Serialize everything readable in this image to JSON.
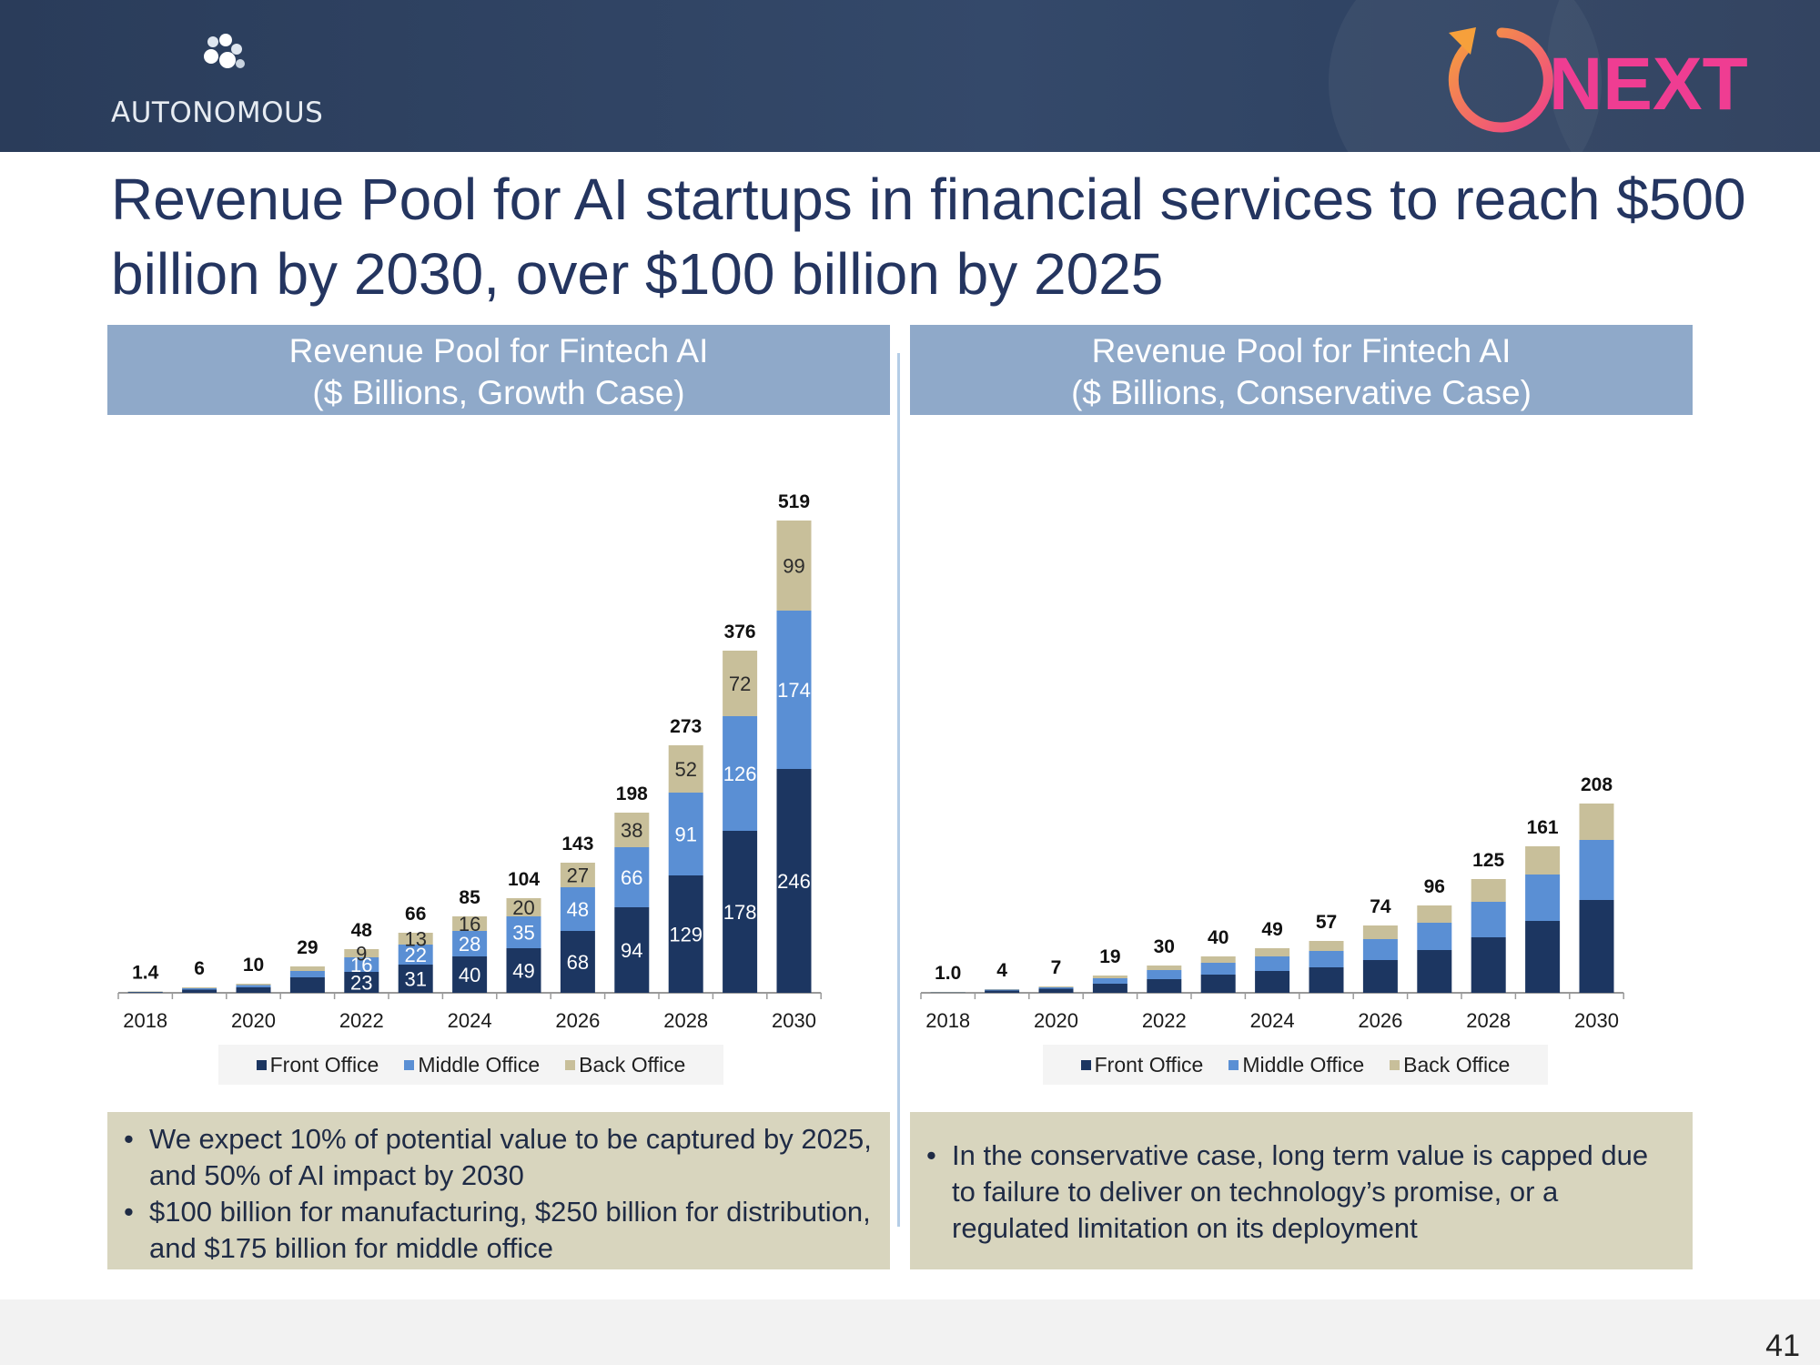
{
  "header": {
    "brand": "AUTONOMOUS",
    "next_logo": "NEXT"
  },
  "title": "Revenue Pool for AI startups in financial services to reach $500 billion by 2030, over $100 billion by 2025",
  "colors": {
    "front_office": "#1c3661",
    "middle_office": "#5a8fd4",
    "back_office": "#c8bf9a",
    "header_band": "#8fa9c9",
    "note_bg": "#d8d5be"
  },
  "legend": {
    "front": "Front Office",
    "middle": "Middle Office",
    "back": "Back Office"
  },
  "chart_data": [
    {
      "type": "bar",
      "stacked": true,
      "title": "Revenue Pool for Fintech AI",
      "subtitle": "($ Billions, Growth Case)",
      "categories": [
        "2018",
        "2019",
        "2020",
        "2021",
        "2022",
        "2023",
        "2024",
        "2025",
        "2026",
        "2027",
        "2028",
        "2029",
        "2030"
      ],
      "tick_labels": [
        "2018",
        "",
        "2020",
        "",
        "2022",
        "",
        "2024",
        "",
        "2026",
        "",
        "2028",
        "",
        "2030"
      ],
      "totals": [
        "1.4",
        "6",
        "10",
        "29",
        "48",
        "66",
        "85",
        "104",
        "143",
        "198",
        "273",
        "376",
        "519"
      ],
      "series": [
        {
          "name": "Front Office",
          "values": [
            1.0,
            3.5,
            6,
            17,
            23,
            31,
            40,
            49,
            68,
            94,
            129,
            178,
            246
          ],
          "labels": [
            "",
            "",
            "",
            "",
            "23",
            "31",
            "40",
            "49",
            "68",
            "94",
            "129",
            "178",
            "246"
          ]
        },
        {
          "name": "Middle Office",
          "values": [
            0.3,
            1.5,
            2.5,
            7,
            16,
            22,
            28,
            35,
            48,
            66,
            91,
            126,
            174
          ],
          "labels": [
            "",
            "",
            "",
            "",
            "16",
            "22",
            "28",
            "35",
            "48",
            "66",
            "91",
            "126",
            "174"
          ]
        },
        {
          "name": "Back Office",
          "values": [
            0.1,
            1,
            1.5,
            5,
            9,
            13,
            16,
            20,
            27,
            38,
            52,
            72,
            99
          ],
          "labels": [
            "",
            "",
            "",
            "",
            "9",
            "13",
            "16",
            "20",
            "27",
            "38",
            "52",
            "72",
            "99"
          ]
        }
      ],
      "ylim": [
        0,
        560
      ]
    },
    {
      "type": "bar",
      "stacked": true,
      "title": "Revenue Pool for Fintech AI",
      "subtitle": "($ Billions, Conservative Case)",
      "categories": [
        "2018",
        "2019",
        "2020",
        "2021",
        "2022",
        "2023",
        "2024",
        "2025",
        "2026",
        "2027",
        "2028",
        "2029",
        "2030"
      ],
      "tick_labels": [
        "2018",
        "",
        "2020",
        "",
        "2022",
        "",
        "2024",
        "",
        "2026",
        "",
        "2028",
        "",
        "2030"
      ],
      "totals": [
        "1.0",
        "4",
        "7",
        "19",
        "30",
        "40",
        "49",
        "57",
        "74",
        "96",
        "125",
        "161",
        "208"
      ],
      "series": [
        {
          "name": "Front Office",
          "values": [
            0.7,
            2.5,
            4.5,
            10,
            15,
            20,
            24,
            28,
            36,
            47,
            61,
            79,
            102
          ]
        },
        {
          "name": "Middle Office",
          "values": [
            0.2,
            1,
            1.5,
            6,
            10,
            13,
            16,
            18,
            23,
            30,
            39,
            51,
            66
          ]
        },
        {
          "name": "Back Office",
          "values": [
            0.1,
            0.5,
            1,
            3,
            5,
            7,
            9,
            11,
            15,
            19,
            25,
            31,
            40
          ]
        }
      ],
      "ylim": [
        0,
        560
      ]
    }
  ],
  "notes": {
    "left": [
      "We expect 10% of potential value to be captured by 2025, and 50% of AI impact by 2030",
      "$100 billion for manufacturing, $250 billion for distribution, and $175 billion for middle office"
    ],
    "right": [
      "In the conservative case, long term value is capped due to failure to deliver on technology’s promise, or a regulated limitation on its deployment"
    ],
    "bullet": "•"
  },
  "page_number": "41"
}
